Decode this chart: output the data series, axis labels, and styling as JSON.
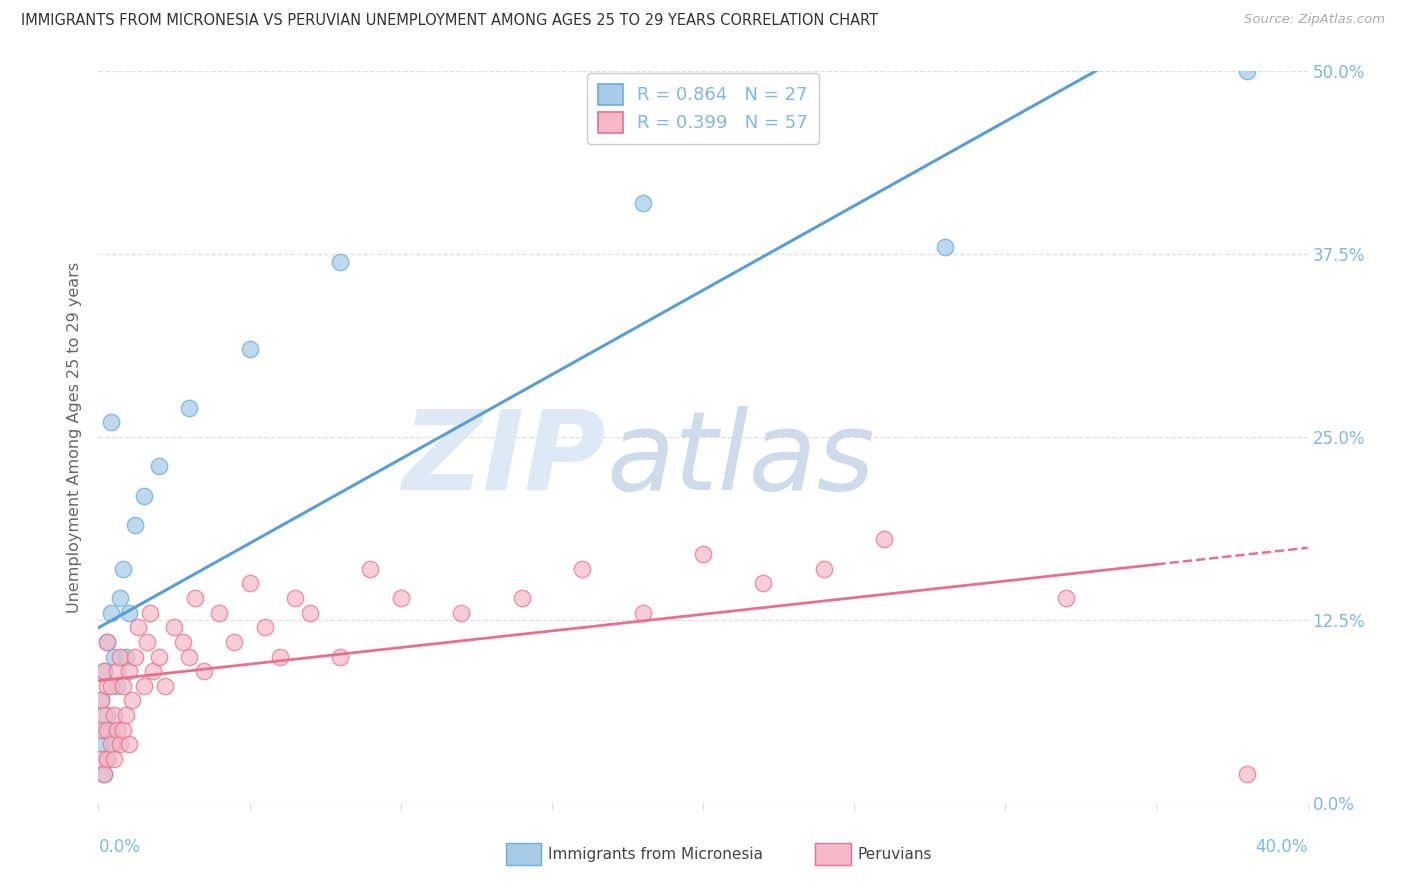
{
  "title": "IMMIGRANTS FROM MICRONESIA VS PERUVIAN UNEMPLOYMENT AMONG AGES 25 TO 29 YEARS CORRELATION CHART",
  "source": "Source: ZipAtlas.com",
  "legend_label1": "Immigrants from Micronesia",
  "legend_label2": "Peruvians",
  "R1": 0.864,
  "N1": 27,
  "R2": 0.399,
  "N2": 57,
  "color_blue_fill": "#a8cce8",
  "color_blue_edge": "#6aaed6",
  "color_pink_fill": "#f5b8c8",
  "color_pink_edge": "#e8708a",
  "color_line_blue": "#5a9fd4",
  "color_line_pink": "#e8708a",
  "color_axis_tick": "#7eb8e8",
  "color_grid": "#dddddd",
  "color_ylabel": "#666666",
  "color_title": "#333333",
  "color_source": "#aaaaaa",
  "blue_x": [
    0.001,
    0.001,
    0.002,
    0.002,
    0.002,
    0.003,
    0.003,
    0.003,
    0.004,
    0.004,
    0.005,
    0.005,
    0.006,
    0.007,
    0.008,
    0.009,
    0.01,
    0.012,
    0.015,
    0.02,
    0.03,
    0.05,
    0.08,
    0.18,
    0.28,
    0.38,
    0.004
  ],
  "blue_y": [
    0.04,
    0.07,
    0.02,
    0.05,
    0.09,
    0.03,
    0.06,
    0.11,
    0.05,
    0.13,
    0.04,
    0.1,
    0.08,
    0.14,
    0.16,
    0.1,
    0.13,
    0.19,
    0.21,
    0.23,
    0.27,
    0.31,
    0.37,
    0.41,
    0.38,
    0.5,
    0.26
  ],
  "pink_x": [
    0.001,
    0.001,
    0.001,
    0.002,
    0.002,
    0.002,
    0.003,
    0.003,
    0.003,
    0.003,
    0.004,
    0.004,
    0.005,
    0.005,
    0.006,
    0.006,
    0.007,
    0.007,
    0.008,
    0.008,
    0.009,
    0.01,
    0.01,
    0.011,
    0.012,
    0.013,
    0.015,
    0.016,
    0.017,
    0.018,
    0.02,
    0.022,
    0.025,
    0.028,
    0.03,
    0.032,
    0.035,
    0.04,
    0.045,
    0.05,
    0.055,
    0.06,
    0.065,
    0.07,
    0.08,
    0.09,
    0.1,
    0.12,
    0.14,
    0.16,
    0.18,
    0.2,
    0.22,
    0.24,
    0.26,
    0.32,
    0.38
  ],
  "pink_y": [
    0.03,
    0.05,
    0.07,
    0.02,
    0.06,
    0.09,
    0.03,
    0.05,
    0.08,
    0.11,
    0.04,
    0.08,
    0.03,
    0.06,
    0.05,
    0.09,
    0.04,
    0.1,
    0.05,
    0.08,
    0.06,
    0.04,
    0.09,
    0.07,
    0.1,
    0.12,
    0.08,
    0.11,
    0.13,
    0.09,
    0.1,
    0.08,
    0.12,
    0.11,
    0.1,
    0.14,
    0.09,
    0.13,
    0.11,
    0.15,
    0.12,
    0.1,
    0.14,
    0.13,
    0.1,
    0.16,
    0.14,
    0.13,
    0.14,
    0.16,
    0.13,
    0.17,
    0.15,
    0.16,
    0.18,
    0.14,
    0.02
  ],
  "xlim": [
    0.0,
    0.4
  ],
  "ylim": [
    0.0,
    0.5
  ],
  "xticks": [
    0.0,
    0.05,
    0.1,
    0.15,
    0.2,
    0.25,
    0.3,
    0.35,
    0.4
  ],
  "yticks": [
    0.0,
    0.125,
    0.25,
    0.375,
    0.5
  ],
  "ytick_labels": [
    "0.0%",
    "12.5%",
    "25.0%",
    "37.5%",
    "50.0%"
  ]
}
